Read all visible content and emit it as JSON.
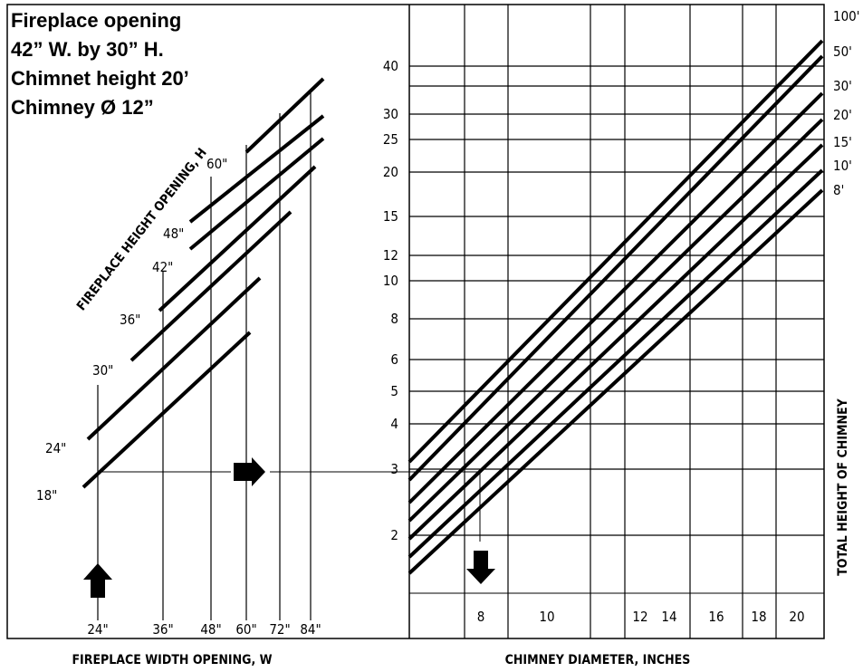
{
  "notes": [
    "Fireplace opening",
    "42” W. by 30” H.",
    "Chimnet height 20’",
    "Chimney Ø 12”"
  ],
  "left_panel": {
    "height_axis_label": "FIREPLACE HEIGHT OPENING, H",
    "height_labels": [
      "18\"",
      "24\"",
      "30\"",
      "36\"",
      "42\"",
      "48\"",
      "60\""
    ],
    "width_labels": [
      "24\"",
      "36\"",
      "48\"",
      "60\"",
      "72\"",
      "84\""
    ],
    "width_axis_label": "FIREPLACE WIDTH OPENING, W"
  },
  "right_panel": {
    "scale_labels": [
      "40",
      "30",
      "25",
      "20",
      "15",
      "12",
      "10",
      "8",
      "6",
      "5",
      "4",
      "3",
      "2"
    ],
    "diameter_labels": [
      "8",
      "10",
      "12",
      "14",
      "16",
      "18",
      "20"
    ],
    "diameter_axis_label": "CHIMNEY DIAMETER, INCHES",
    "height_labels": [
      "100'",
      "50'",
      "30'",
      "20'",
      "15'",
      "10'",
      "8'"
    ],
    "height_axis_label": "TOTAL HEIGHT OF CHIMNEY"
  }
}
